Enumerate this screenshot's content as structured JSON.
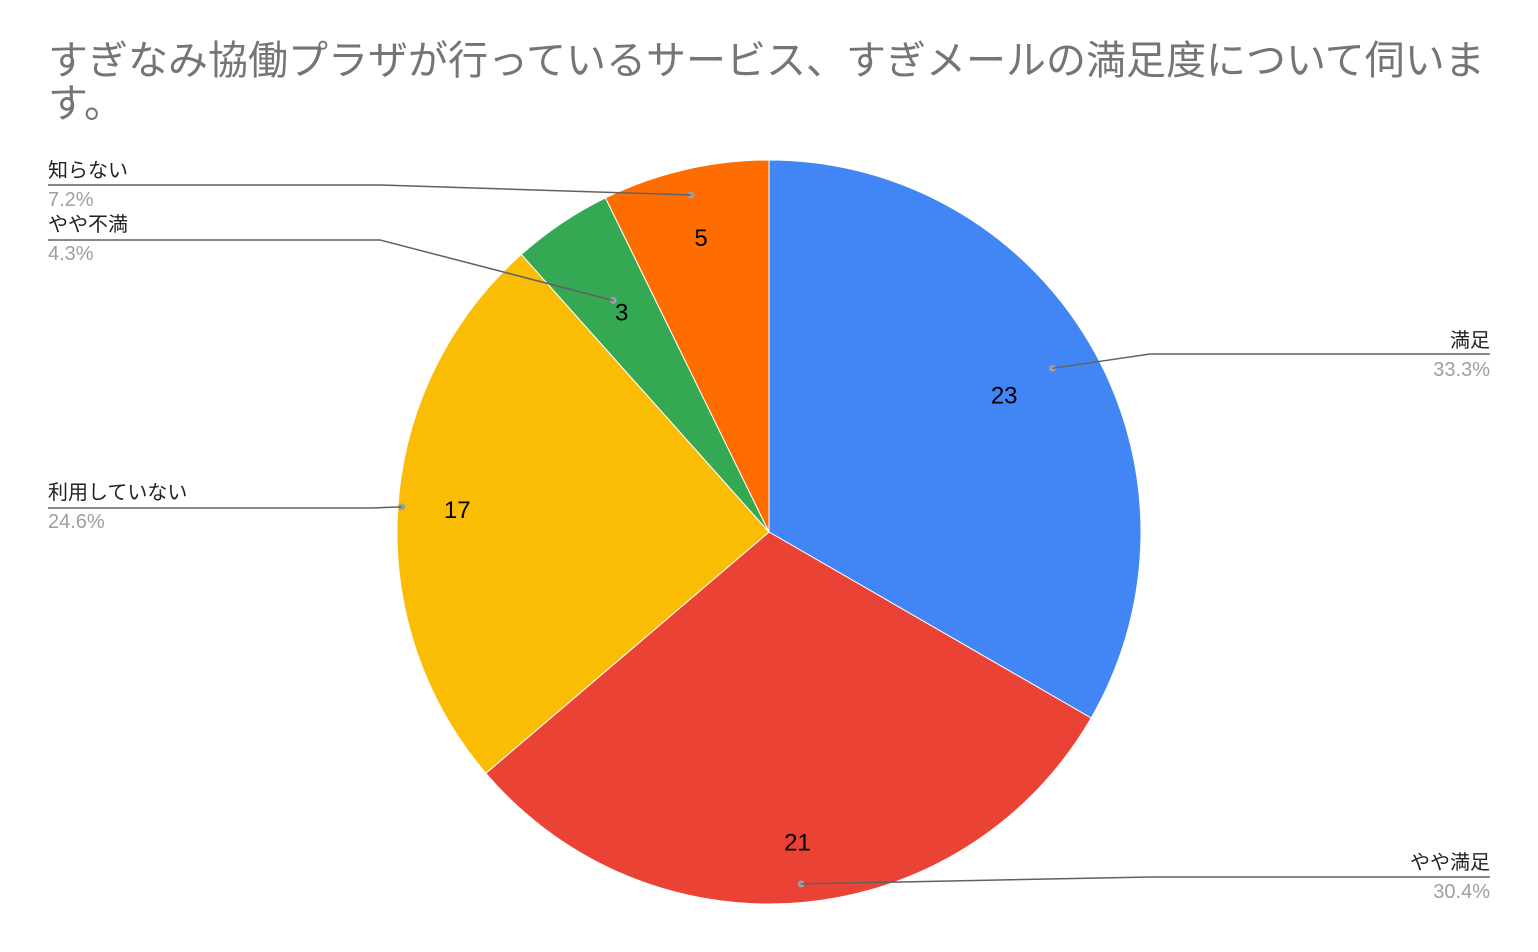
{
  "chart_data": {
    "type": "pie",
    "title": "すぎなみ協働プラザが行っているサービス、すぎメールの満足度について伺います。",
    "legend": "labeled",
    "slices": [
      {
        "label": "満足",
        "value": 23,
        "percent": "33.3%",
        "color": "#4285f4"
      },
      {
        "label": "やや満足",
        "value": 21,
        "percent": "30.4%",
        "color": "#ea4335"
      },
      {
        "label": "利用していない",
        "value": 17,
        "percent": "24.6%",
        "color": "#fbbc04"
      },
      {
        "label": "やや不満",
        "value": 3,
        "percent": "4.3%",
        "color": "#34a853"
      },
      {
        "label": "知らない",
        "value": 5,
        "percent": "7.2%",
        "color": "#ff6d01"
      }
    ]
  }
}
